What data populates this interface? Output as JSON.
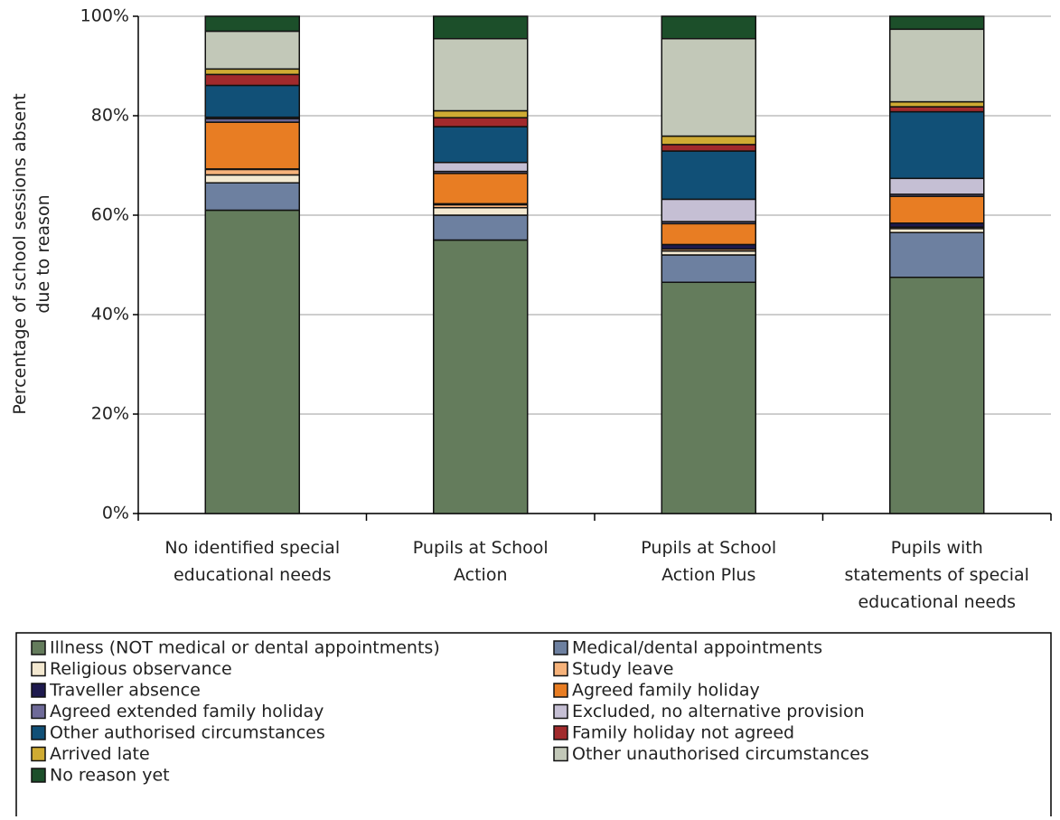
{
  "chart_data": {
    "type": "stacked_bar",
    "ylabel": "Percentage of school sessions absent\ndue to reason",
    "categories": [
      "No identified special\neducational needs",
      "Pupils at School\nAction",
      "Pupils at School\nAction Plus",
      "Pupils with\nstatements of special\neducational needs"
    ],
    "ylim": [
      0,
      100
    ],
    "yticks": [
      {
        "value": 0,
        "label": "0%"
      },
      {
        "value": 20,
        "label": "20%"
      },
      {
        "value": 40,
        "label": "40%"
      },
      {
        "value": 60,
        "label": "60%"
      },
      {
        "value": 80,
        "label": "80%"
      },
      {
        "value": 100,
        "label": "100%"
      }
    ],
    "grid": true,
    "legend": "bottom",
    "series": [
      {
        "name": "Illness (NOT medical or dental appointments)",
        "color": "#647c5c",
        "values": [
          61,
          55,
          46.5,
          47.5
        ]
      },
      {
        "name": "Medical/dental appointments",
        "color": "#6d80a0",
        "values": [
          5.5,
          5,
          5.5,
          9
        ]
      },
      {
        "name": "Religious observance",
        "color": "#f3e8d0",
        "values": [
          1.6,
          1.5,
          0.8,
          0.8
        ]
      },
      {
        "name": "Study leave",
        "color": "#f6b27a",
        "values": [
          1.1,
          0.6,
          0.4,
          0.3
        ]
      },
      {
        "name": "Traveller absence",
        "color": "#1e1a4e",
        "values": [
          0.1,
          0.2,
          0.9,
          0.8
        ]
      },
      {
        "name": "Agreed family holiday",
        "color": "#e87d23",
        "values": [
          9.4,
          6.1,
          4.2,
          5.4
        ]
      },
      {
        "name": "Agreed extended family holiday",
        "color": "#6e6a98",
        "values": [
          0.7,
          0.4,
          0.4,
          0.4
        ]
      },
      {
        "name": "Excluded, no alternative provision",
        "color": "#c5bfd4",
        "values": [
          0.3,
          1.8,
          4.5,
          3.2
        ]
      },
      {
        "name": "Other authorised circumstances",
        "color": "#115077",
        "values": [
          6.4,
          7.2,
          9.7,
          13.4
        ]
      },
      {
        "name": "Family holiday not agreed",
        "color": "#a12a2c",
        "values": [
          2.2,
          1.8,
          1.3,
          1.0
        ]
      },
      {
        "name": "Arrived late",
        "color": "#cfab33",
        "values": [
          1.1,
          1.4,
          1.7,
          1.0
        ]
      },
      {
        "name": "Other unauthorised circumstances",
        "color": "#c2c8b8",
        "values": [
          7.6,
          14.5,
          19.6,
          14.6
        ]
      },
      {
        "name": "No reason yet",
        "color": "#1c4f2a",
        "values": [
          3.0,
          4.5,
          4.5,
          2.6
        ]
      }
    ]
  }
}
